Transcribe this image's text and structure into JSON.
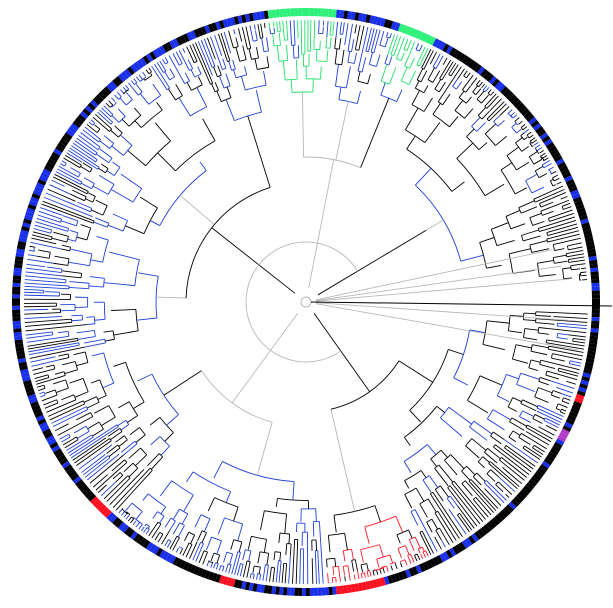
{
  "figure": {
    "kind": "circular phylogenetic tree",
    "text_labels": []
  },
  "colors": {
    "background": "#ffffff",
    "branch_black": "#000000",
    "branch_blue": "#1f3fd6",
    "branch_gray": "#b8b8b8",
    "branch_green": "#22e06a",
    "branch_red": "#ff1a2a",
    "branch_magenta": "#b03ac8",
    "tip_black": "#000000",
    "tip_blue": "#1a2fe8",
    "tip_green": "#2ef07a",
    "tip_red": "#ff1020"
  },
  "tree": {
    "leaf_count": 480,
    "clades": [
      {
        "name": "right-upper-black",
        "color": "branch_black"
      },
      {
        "name": "right-blue-cluster",
        "color": "branch_blue"
      },
      {
        "name": "bottom-right-red",
        "color": "branch_red"
      },
      {
        "name": "bottom-blue-black-mix",
        "color": "branch_blue"
      },
      {
        "name": "left-lower-black",
        "color": "branch_black"
      },
      {
        "name": "left-blue",
        "color": "branch_blue"
      },
      {
        "name": "upper-left-blue",
        "color": "branch_blue"
      },
      {
        "name": "top-green-1",
        "color": "branch_green"
      },
      {
        "name": "top-green-2",
        "color": "branch_green"
      },
      {
        "name": "top-right-black",
        "color": "branch_black"
      }
    ],
    "outer_ring_segments": [
      {
        "color": "tip_black"
      },
      {
        "color": "tip_blue"
      },
      {
        "color": "tip_green"
      },
      {
        "color": "tip_red"
      }
    ],
    "outgroup": {
      "label": "",
      "color": "branch_black"
    }
  }
}
